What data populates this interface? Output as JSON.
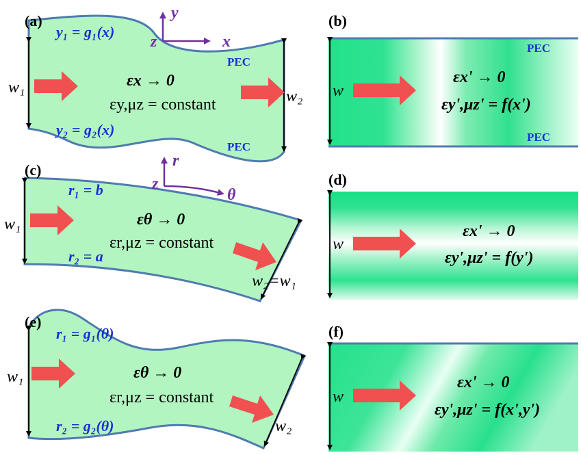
{
  "panels": {
    "a": {
      "label": "(a)",
      "top_boundary": "y₁ = g₁(x)",
      "bottom_boundary": "y₂ = g₂(x)",
      "eq1": "εx → 0",
      "eq2": "εy,μz = constant",
      "w_in": "w₁",
      "w_out": "w₂",
      "pec": "PEC",
      "axes": {
        "y": "y",
        "z": "z",
        "x": "x"
      }
    },
    "b": {
      "label": "(b)",
      "pec": "PEC",
      "w": "w",
      "eq1": "εx' → 0",
      "eq2": "εy',μz' = f(x')"
    },
    "c": {
      "label": "(c)",
      "top_boundary": "r₁ = b",
      "bottom_boundary": "r₂ = a",
      "eq1": "εθ → 0",
      "eq2": "εr,μz = constant",
      "w_in": "w₁",
      "w_out": "w₂=w₁",
      "axes": {
        "r": "r",
        "z": "z",
        "theta": "θ"
      }
    },
    "d": {
      "label": "(d)",
      "w": "w",
      "eq1": "εx' → 0",
      "eq2": "εy',μz' = f(y')"
    },
    "e": {
      "label": "(e)",
      "top_boundary": "r₁ = g₁(θ)",
      "bottom_boundary": "r₂ = g₂(θ)",
      "eq1": "εθ → 0",
      "eq2": "εr,μz = constant",
      "w_in": "w₁",
      "w_out": "w₂"
    },
    "f": {
      "label": "(f)",
      "w": "w",
      "eq1": "εx' → 0",
      "eq2": "εy',μz' = f(x',y')"
    }
  },
  "colors": {
    "fill_light_green": "#b3f5c0",
    "gradient_green": "#22e28a",
    "boundary_blue": "#4f7bb0",
    "arrow_red": "#f05050",
    "text_blue": "#1a2fd6",
    "axis_purple": "#7030a0"
  }
}
